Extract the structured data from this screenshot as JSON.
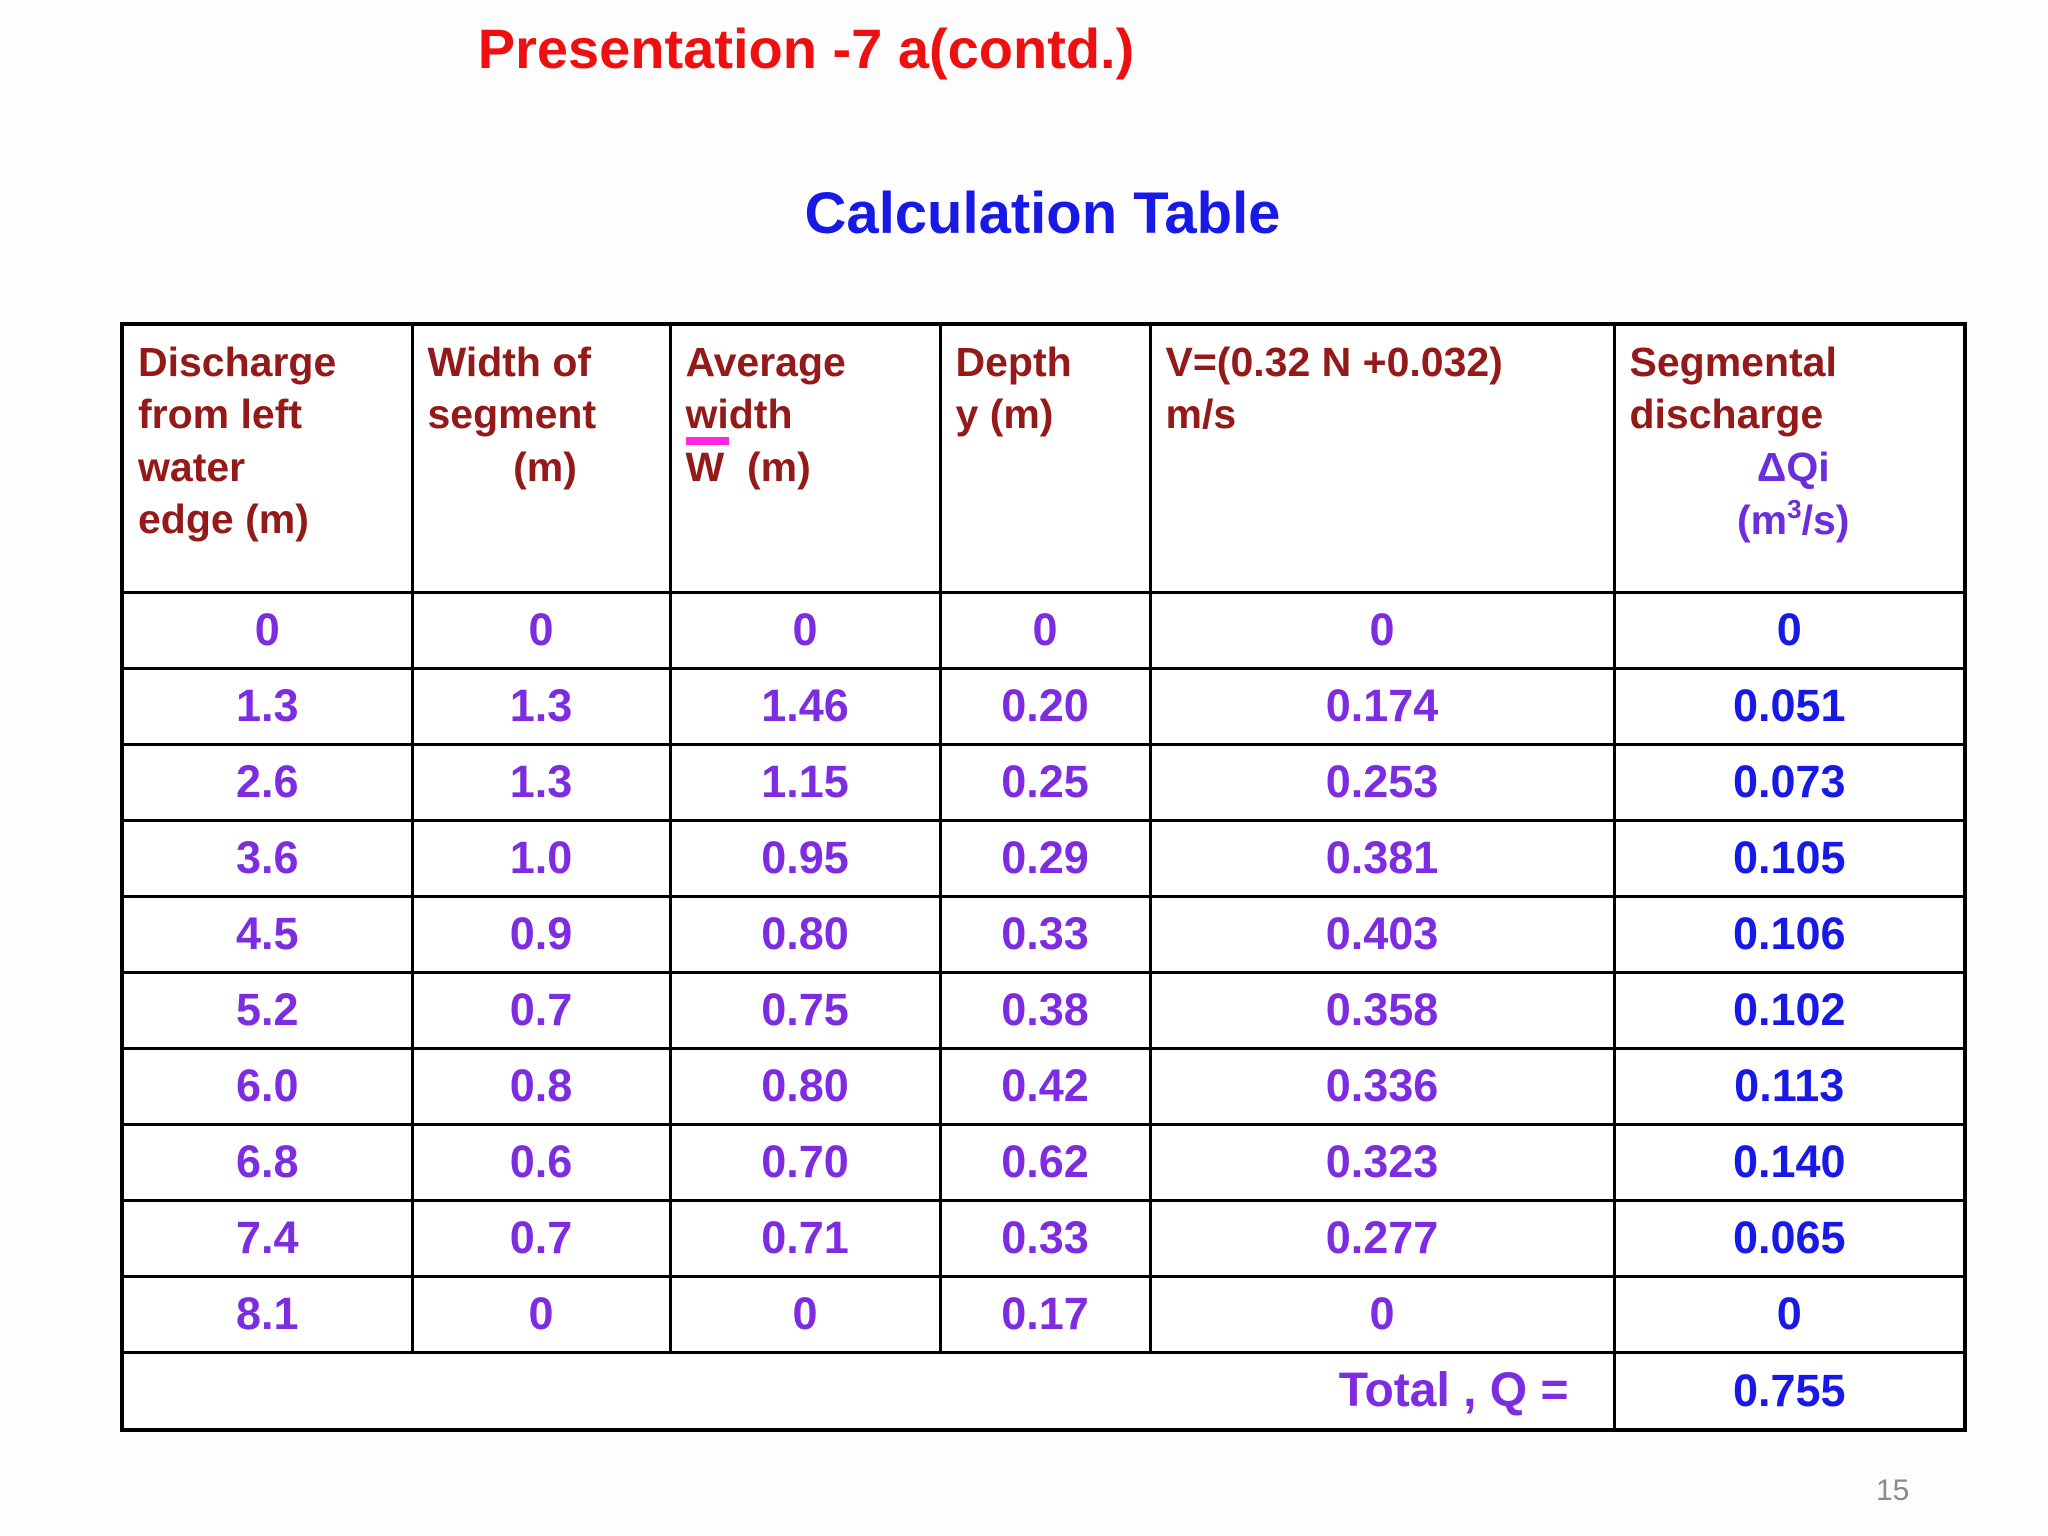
{
  "slide": {
    "title": "Presentation -7 a(contd.)",
    "subtitle": "Calculation Table",
    "page_number": "15"
  },
  "colors": {
    "title_red": "#ee1010",
    "subtitle_blue": "#1919e6",
    "header_maroon": "#941a1a",
    "formula_blue": "#1a1ae8",
    "value_violet": "#7e2ce2",
    "value_blue": "#1919e6",
    "underline_pink": "#ff28dc",
    "page_number_gray": "#8a8a8a",
    "border_black": "#000000"
  },
  "table": {
    "headers": {
      "col1": [
        "Discharge",
        "from left",
        "water",
        "edge (m)"
      ],
      "col2": [
        "Width of",
        "segment",
        "(m)"
      ],
      "col3": {
        "line1": "Average",
        "wi": "wi",
        "dth": "dth",
        "line3": "W  (m)"
      },
      "col4": [
        "Depth",
        "y (m)"
      ],
      "col5": [
        "V=(0.32 N +0.032)",
        "m/s"
      ],
      "col6": {
        "line1": "Segmental",
        "line2": "discharge",
        "dq": "ΔQi",
        "unit_pre": "(m",
        "unit_sup": "3",
        "unit_post": "/s)"
      }
    },
    "rows": [
      [
        "0",
        "0",
        "0",
        "0",
        "0",
        "0"
      ],
      [
        "1.3",
        "1.3",
        "1.46",
        "0.20",
        "0.174",
        "0.051"
      ],
      [
        "2.6",
        "1.3",
        "1.15",
        "0.25",
        "0.253",
        "0.073"
      ],
      [
        "3.6",
        "1.0",
        "0.95",
        "0.29",
        "0.381",
        "0.105"
      ],
      [
        "4.5",
        "0.9",
        "0.80",
        "0.33",
        "0.403",
        "0.106"
      ],
      [
        "5.2",
        "0.7",
        "0.75",
        "0.38",
        "0.358",
        "0.102"
      ],
      [
        "6.0",
        "0.8",
        "0.80",
        "0.42",
        "0.336",
        "0.113"
      ],
      [
        "6.8",
        "0.6",
        "0.70",
        "0.62",
        "0.323",
        "0.140"
      ],
      [
        "7.4",
        "0.7",
        "0.71",
        "0.33",
        "0.277",
        "0.065"
      ],
      [
        "8.1",
        "0",
        "0",
        "0.17",
        "0",
        "0"
      ]
    ],
    "total_label": "Total , Q =",
    "total_value": "0.755"
  }
}
